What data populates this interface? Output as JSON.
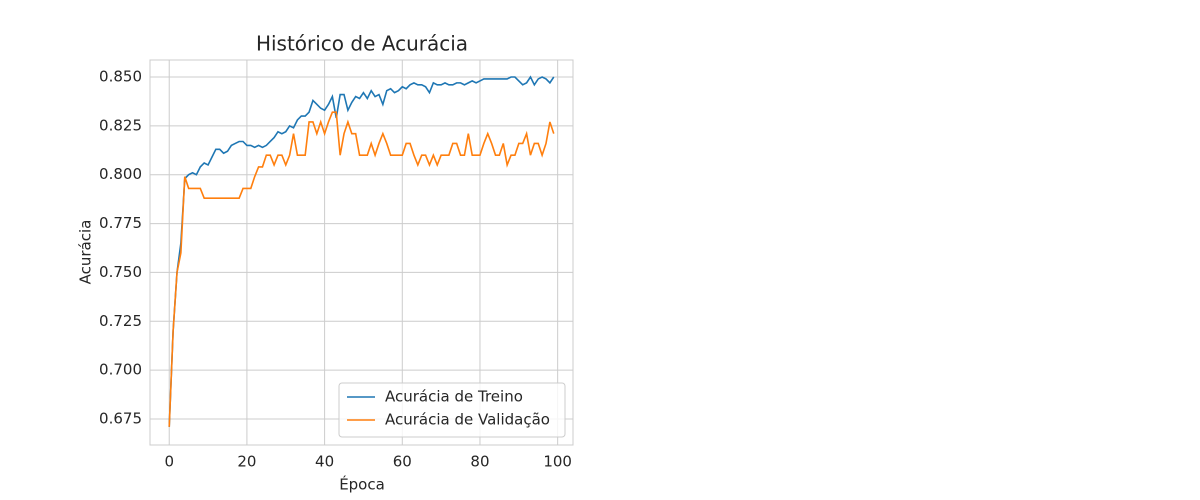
{
  "chart_data": {
    "type": "line",
    "title": "Histórico de Acurácia",
    "xlabel": "Época",
    "ylabel": "Acurácia",
    "x": [
      0,
      1,
      2,
      3,
      4,
      5,
      6,
      7,
      8,
      9,
      10,
      11,
      12,
      13,
      14,
      15,
      16,
      17,
      18,
      19,
      20,
      21,
      22,
      23,
      24,
      25,
      26,
      27,
      28,
      29,
      30,
      31,
      32,
      33,
      34,
      35,
      36,
      37,
      38,
      39,
      40,
      41,
      42,
      43,
      44,
      45,
      46,
      47,
      48,
      49,
      50,
      51,
      52,
      53,
      54,
      55,
      56,
      57,
      58,
      59,
      60,
      61,
      62,
      63,
      64,
      65,
      66,
      67,
      68,
      69,
      70,
      71,
      72,
      73,
      74,
      75,
      76,
      77,
      78,
      79,
      80,
      81,
      82,
      83,
      84,
      85,
      86,
      87,
      88,
      89,
      90,
      91,
      92,
      93,
      94,
      95,
      96,
      97,
      98,
      99
    ],
    "series": [
      {
        "name": "Acurácia de Treino",
        "color": "#1f77b4",
        "values": [
          0.671,
          0.72,
          0.75,
          0.765,
          0.798,
          0.8,
          0.801,
          0.8,
          0.804,
          0.806,
          0.805,
          0.809,
          0.813,
          0.813,
          0.811,
          0.812,
          0.815,
          0.816,
          0.817,
          0.817,
          0.815,
          0.815,
          0.814,
          0.815,
          0.814,
          0.815,
          0.817,
          0.819,
          0.822,
          0.821,
          0.822,
          0.825,
          0.824,
          0.828,
          0.83,
          0.83,
          0.832,
          0.838,
          0.836,
          0.834,
          0.833,
          0.836,
          0.84,
          0.829,
          0.841,
          0.841,
          0.833,
          0.837,
          0.84,
          0.839,
          0.842,
          0.839,
          0.843,
          0.84,
          0.841,
          0.836,
          0.843,
          0.844,
          0.842,
          0.843,
          0.845,
          0.844,
          0.846,
          0.847,
          0.846,
          0.846,
          0.845,
          0.842,
          0.847,
          0.846,
          0.846,
          0.847,
          0.846,
          0.846,
          0.847,
          0.847,
          0.846,
          0.847,
          0.848,
          0.847,
          0.848,
          0.849,
          0.849,
          0.849,
          0.849,
          0.849,
          0.849,
          0.849,
          0.85,
          0.85,
          0.848,
          0.846,
          0.847,
          0.85,
          0.846,
          0.849,
          0.85,
          0.849,
          0.847,
          0.85
        ]
      },
      {
        "name": "Acurácia de Validação",
        "color": "#ff7f0e",
        "values": [
          0.671,
          0.72,
          0.75,
          0.76,
          0.799,
          0.793,
          0.793,
          0.793,
          0.793,
          0.788,
          0.788,
          0.788,
          0.788,
          0.788,
          0.788,
          0.788,
          0.788,
          0.788,
          0.788,
          0.793,
          0.793,
          0.793,
          0.799,
          0.804,
          0.804,
          0.81,
          0.81,
          0.805,
          0.81,
          0.81,
          0.805,
          0.81,
          0.821,
          0.81,
          0.81,
          0.81,
          0.827,
          0.827,
          0.821,
          0.827,
          0.821,
          0.827,
          0.832,
          0.832,
          0.81,
          0.821,
          0.827,
          0.821,
          0.821,
          0.81,
          0.81,
          0.81,
          0.816,
          0.81,
          0.816,
          0.821,
          0.816,
          0.81,
          0.81,
          0.81,
          0.81,
          0.816,
          0.816,
          0.81,
          0.805,
          0.81,
          0.81,
          0.805,
          0.81,
          0.805,
          0.81,
          0.81,
          0.81,
          0.816,
          0.816,
          0.81,
          0.81,
          0.821,
          0.81,
          0.81,
          0.81,
          0.816,
          0.821,
          0.816,
          0.81,
          0.81,
          0.816,
          0.805,
          0.81,
          0.81,
          0.816,
          0.816,
          0.821,
          0.81,
          0.816,
          0.816,
          0.81,
          0.816,
          0.827,
          0.821
        ]
      }
    ],
    "xlim": [
      -4.95,
      103.95
    ],
    "ylim": [
      0.6617,
      0.8587
    ],
    "xticks": [
      0,
      20,
      40,
      60,
      80,
      100
    ],
    "yticks": [
      0.675,
      {
        "value": 0.7,
        "label": "0.700"
      },
      0.725,
      {
        "value": 0.75,
        "label": "0.750"
      },
      0.775,
      {
        "value": 0.8,
        "label": "0.800"
      },
      0.825,
      {
        "value": 0.85,
        "label": "0.850"
      }
    ],
    "grid": true,
    "legend": "lower right"
  }
}
